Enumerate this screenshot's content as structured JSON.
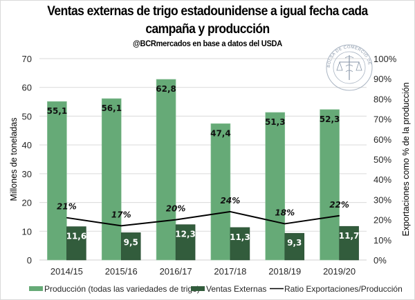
{
  "chart_data": {
    "type": "bar",
    "title": "Ventas externas de trigo estadounidense a igual fecha cada campaña y producción",
    "title_lines": [
      "Ventas externas de trigo estadounidense a igual fecha cada",
      "campaña y producción"
    ],
    "subtitle": "@BCRmercados  en base a datos del USDA",
    "categories": [
      "2014/15",
      "2015/16",
      "2016/17",
      "2017/18",
      "2018/19",
      "2019/20"
    ],
    "series": [
      {
        "name": "Producción (todas las variedades de trigo)",
        "type": "bar",
        "axis": "left",
        "color": "#66aa77",
        "values": [
          55.1,
          56.1,
          62.8,
          47.4,
          51.3,
          52.3
        ],
        "labels": [
          "55,1",
          "56,1",
          "62,8",
          "47,4",
          "51,3",
          "52,3"
        ]
      },
      {
        "name": "Ventas Externas",
        "type": "bar",
        "axis": "left",
        "color": "#325c3c",
        "values": [
          11.6,
          9.5,
          12.3,
          11.3,
          9.3,
          11.7
        ],
        "labels": [
          "11,6",
          "9,5",
          "12,3",
          "11,3",
          "9,3",
          "11,7"
        ]
      },
      {
        "name": "Ratio Exportaciones/Producción",
        "type": "line",
        "axis": "right",
        "color": "#000000",
        "values": [
          21,
          17,
          20,
          24,
          18,
          22
        ],
        "labels": [
          "21%",
          "17%",
          "20%",
          "24%",
          "18%",
          "22%"
        ]
      }
    ],
    "xlabel": "",
    "ylabel": "Millones de toneladas",
    "y2label": "Exportaciones como % de la producción",
    "ylim": [
      0,
      70
    ],
    "yticks": [
      "0",
      "10",
      "20",
      "30",
      "40",
      "50",
      "60",
      "70"
    ],
    "y2lim": [
      0,
      100
    ],
    "y2ticks": [
      "0%",
      "10%",
      "20%",
      "30%",
      "40%",
      "50%",
      "60%",
      "70%",
      "80%",
      "90%",
      "100%"
    ],
    "grid": true,
    "legend_position": "bottom"
  },
  "watermark": {
    "text": "BOLSA DE COMERCIO DE ROSARIO",
    "icon": "caduceus-scales-seal-icon"
  },
  "colors": {
    "production": "#66aa77",
    "exports": "#325c3c",
    "ratio": "#000000",
    "grid": "#d9d9d9"
  }
}
